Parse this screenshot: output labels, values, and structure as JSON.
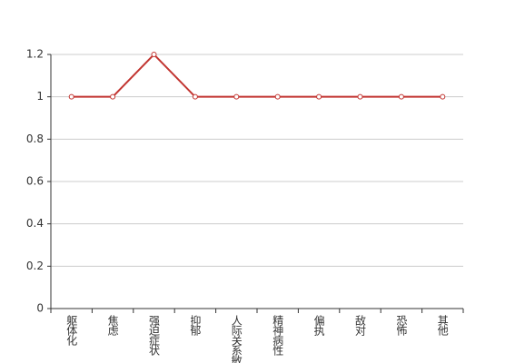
{
  "chart_data": {
    "type": "line",
    "categories": [
      "躯体化",
      "焦虑",
      "强迫症状",
      "抑郁",
      "人际关系敏感",
      "精神病性",
      "偏执",
      "敌对",
      "恐怖",
      "其他"
    ],
    "values": [
      1,
      1,
      1.2,
      1,
      1,
      1,
      1,
      1,
      1,
      1
    ],
    "color": "#c23531",
    "ylim": [
      0,
      1.2
    ],
    "yticks": [
      0,
      0.2,
      0.4,
      0.6,
      0.8,
      1,
      1.2
    ],
    "grid": true
  }
}
